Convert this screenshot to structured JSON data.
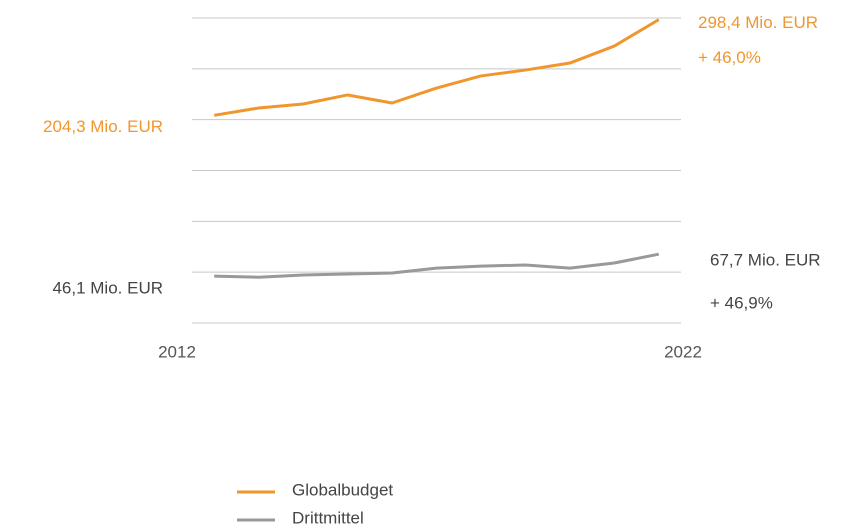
{
  "chart_data": {
    "type": "line",
    "x": [
      2012,
      2013,
      2014,
      2015,
      2016,
      2017,
      2018,
      2019,
      2020,
      2021,
      2022
    ],
    "xlim": [
      2011.5,
      2022.5
    ],
    "xticks": [
      2012,
      2022
    ],
    "ylim": [
      0,
      300
    ],
    "yticks": [
      0,
      50,
      100,
      150,
      200,
      250,
      300
    ],
    "grid": true,
    "legend": "bottom",
    "series": [
      {
        "name": "Globalbudget",
        "color": "#f0962e",
        "values": [
          204.3,
          211.5,
          215.4,
          224.3,
          216.4,
          231.1,
          243,
          248.8,
          255.7,
          272.4,
          298.4
        ],
        "value_labels": [
          "204,3 Mio. EUR",
          null,
          null,
          null,
          null,
          null,
          null,
          null,
          null,
          null,
          "298,4 Mio. EUR"
        ],
        "change": "+ 46,0%"
      },
      {
        "name": "Drittmittel",
        "color": "#999999",
        "values": [
          46.1,
          45,
          47.2,
          48.2,
          49.2,
          54,
          56,
          57,
          54,
          59,
          67.7
        ],
        "value_labels": [
          "46,1 Mio. EUR",
          null,
          null,
          null,
          null,
          null,
          null,
          null,
          null,
          null,
          "67,7 Mio. EUR"
        ],
        "change": "+ 46,9%"
      }
    ]
  }
}
